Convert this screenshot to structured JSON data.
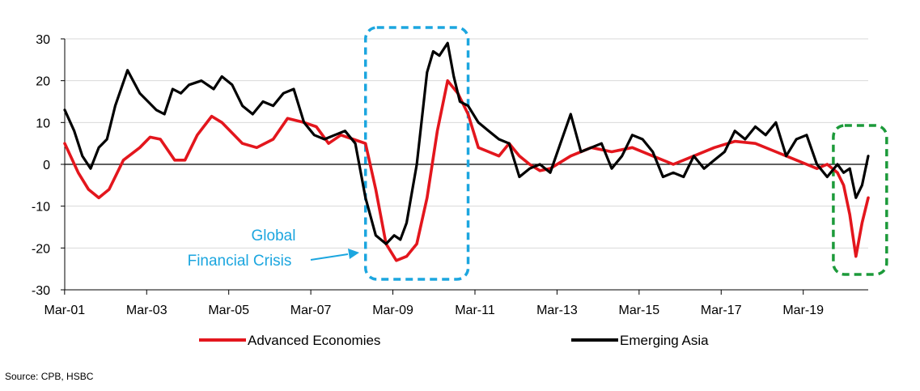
{
  "chart_data": {
    "type": "line",
    "title": "",
    "xlabel": "",
    "ylabel": "",
    "ylim": [
      -30,
      30
    ],
    "yticks": [
      30,
      20,
      10,
      0,
      -10,
      -20,
      -30
    ],
    "xticks": [
      "Mar-01",
      "Mar-03",
      "Mar-05",
      "Mar-07",
      "Mar-09",
      "Mar-11",
      "Mar-13",
      "Mar-15",
      "Mar-17",
      "Mar-19"
    ],
    "x_range_years": [
      2001.17,
      2020.75
    ],
    "grid": "horizontal",
    "legend": "bottom",
    "series": [
      {
        "name": "Advanced Economies",
        "color": "#e3161d",
        "x": [
          2001.17,
          2001.5,
          2001.75,
          2002.0,
          2002.25,
          2002.6,
          2003.0,
          2003.25,
          2003.5,
          2003.85,
          2004.1,
          2004.4,
          2004.75,
          2005.0,
          2005.5,
          2005.85,
          2006.25,
          2006.6,
          2007.0,
          2007.3,
          2007.6,
          2007.9,
          2008.2,
          2008.5,
          2008.75,
          2009.0,
          2009.25,
          2009.5,
          2009.75,
          2010.0,
          2010.25,
          2010.5,
          2010.75,
          2011.0,
          2011.25,
          2011.5,
          2011.75,
          2012.0,
          2012.25,
          2012.5,
          2012.75,
          2013.0,
          2013.5,
          2014.0,
          2014.5,
          2015.0,
          2015.5,
          2016.0,
          2016.5,
          2017.0,
          2017.5,
          2018.0,
          2018.5,
          2019.0,
          2019.25,
          2019.5,
          2019.75,
          2020.0,
          2020.15,
          2020.3,
          2020.45,
          2020.6,
          2020.75
        ],
        "values": [
          5,
          -2,
          -6,
          -8,
          -6,
          1,
          4,
          6.5,
          6,
          1,
          1,
          7,
          11.5,
          10,
          5,
          4,
          6,
          11,
          10,
          9,
          5,
          7,
          6,
          5,
          -6,
          -19,
          -23,
          -22,
          -19,
          -8,
          8,
          20,
          17,
          12,
          4,
          3,
          2,
          5,
          2,
          0,
          -1.5,
          -1,
          2,
          4,
          3,
          4,
          2,
          0,
          2,
          4,
          5.5,
          5,
          3,
          1,
          0,
          -1,
          0,
          -2,
          -5,
          -12,
          -22,
          -14,
          -8
        ]
      },
      {
        "name": "Emerging Asia",
        "color": "#000000",
        "x": [
          2001.17,
          2001.4,
          2001.6,
          2001.8,
          2002.0,
          2002.2,
          2002.4,
          2002.7,
          2003.0,
          2003.2,
          2003.4,
          2003.6,
          2003.8,
          2004.0,
          2004.2,
          2004.5,
          2004.8,
          2005.0,
          2005.25,
          2005.5,
          2005.75,
          2006.0,
          2006.25,
          2006.5,
          2006.75,
          2007.0,
          2007.25,
          2007.5,
          2007.75,
          2008.0,
          2008.25,
          2008.5,
          2008.75,
          2009.0,
          2009.2,
          2009.35,
          2009.5,
          2009.75,
          2010.0,
          2010.15,
          2010.3,
          2010.5,
          2010.65,
          2010.8,
          2011.0,
          2011.25,
          2011.5,
          2011.75,
          2012.0,
          2012.25,
          2012.5,
          2012.75,
          2013.0,
          2013.25,
          2013.5,
          2013.75,
          2014.0,
          2014.25,
          2014.5,
          2014.75,
          2015.0,
          2015.25,
          2015.5,
          2015.75,
          2016.0,
          2016.25,
          2016.5,
          2016.75,
          2017.0,
          2017.25,
          2017.5,
          2017.75,
          2018.0,
          2018.25,
          2018.5,
          2018.75,
          2019.0,
          2019.25,
          2019.5,
          2019.75,
          2020.0,
          2020.15,
          2020.3,
          2020.45,
          2020.6,
          2020.75
        ],
        "values": [
          13,
          8,
          2,
          -1,
          4,
          6,
          14,
          22.5,
          17,
          15,
          13,
          12,
          18,
          17,
          19,
          20,
          18,
          21,
          19,
          14,
          12,
          15,
          14,
          17,
          18,
          10,
          7,
          6,
          7,
          8,
          5,
          -8,
          -17,
          -19,
          -17,
          -18,
          -14,
          0,
          22,
          27,
          26,
          29,
          21,
          15,
          14,
          10,
          8,
          6,
          5,
          -3,
          -1,
          0,
          -2,
          5,
          12,
          3,
          4,
          5,
          -1,
          2,
          7,
          6,
          3,
          -3,
          -2,
          -3,
          2,
          -1,
          1,
          3,
          8,
          6,
          9,
          7,
          10,
          2,
          6,
          7,
          0,
          -3,
          0,
          -2,
          -1,
          -8,
          -5,
          2
        ]
      }
    ],
    "annotations": [
      {
        "lines": [
          "Global",
          "Financial Crisis"
        ],
        "color": "#1ca6df",
        "points_to": "Mar-09 trough"
      }
    ],
    "highlight_boxes": [
      {
        "style": "dashed",
        "color": "#1ca6df",
        "x_range": [
          2008.5,
          2011.0
        ]
      },
      {
        "style": "dashed",
        "color": "#1c9a3a",
        "x_range": [
          2019.9,
          2021.2
        ]
      }
    ]
  },
  "source": "Source: CPB, HSBC"
}
